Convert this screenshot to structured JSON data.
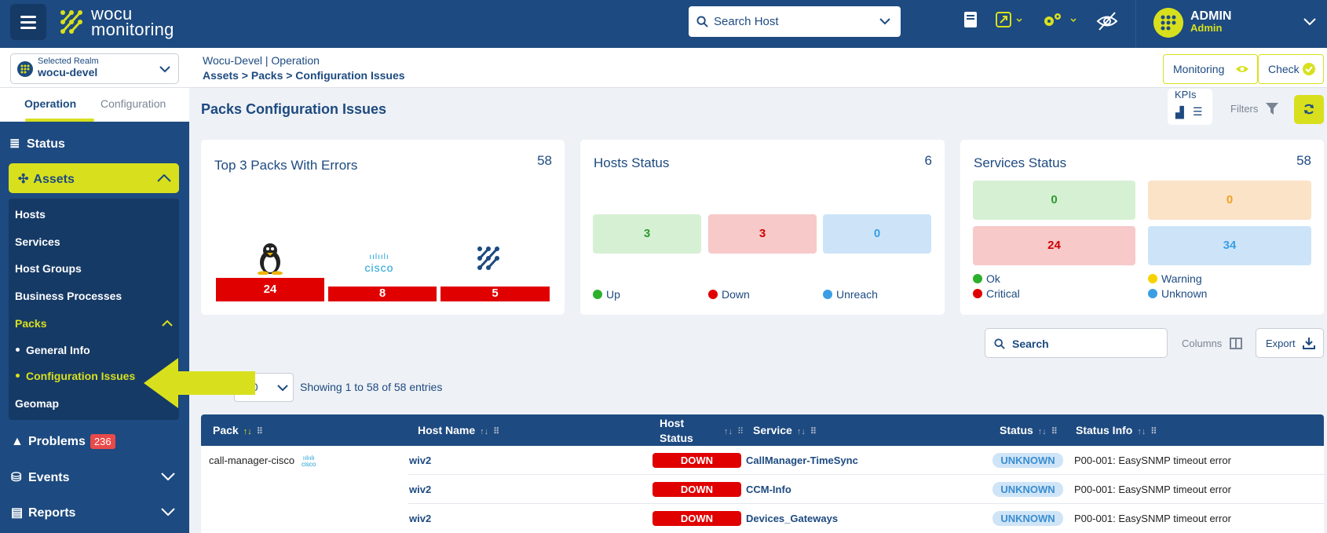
{
  "brand": {
    "line1": "wocu",
    "line2": "monitoring"
  },
  "header": {
    "search_placeholder": "Search Host",
    "user_name": "ADMIN",
    "user_role": "Admin"
  },
  "realm": {
    "label": "Selected Realm",
    "value": "wocu-devel"
  },
  "breadcrumb": {
    "line1": "Wocu-Devel | Operation",
    "line2": "Assets > Packs > Configuration Issues"
  },
  "header_buttons": {
    "monitoring": "Monitoring",
    "check": "Check"
  },
  "sidebar": {
    "tabs": [
      "Operation",
      "Configuration"
    ],
    "status": "Status",
    "assets": "Assets",
    "sub": {
      "hosts": "Hosts",
      "services": "Services",
      "host_groups": "Host Groups",
      "business": "Business Processes",
      "packs": "Packs",
      "general": "General Info",
      "config_issues": "Configuration Issues",
      "geomap": "Geomap"
    },
    "problems": "Problems",
    "problems_count": "236",
    "events": "Events",
    "reports": "Reports"
  },
  "page": {
    "title": "Packs Configuration Issues",
    "kpis": "KPIs",
    "filters": "Filters"
  },
  "cards": {
    "packs": {
      "title": "Top 3 Packs With Errors",
      "count": "58",
      "bars": [
        "24",
        "8",
        "5"
      ],
      "logo": "cisco"
    },
    "hosts": {
      "title": "Hosts Status",
      "count": "6",
      "up": "3",
      "down": "3",
      "unreach": "0",
      "legend": [
        "Up",
        "Down",
        "Unreach"
      ]
    },
    "services": {
      "title": "Services Status",
      "count": "58",
      "ok": "0",
      "warning": "0",
      "critical": "24",
      "unknown": "34",
      "legend": [
        "Ok",
        "Warning",
        "Critical",
        "Unknown"
      ]
    }
  },
  "table_controls": {
    "search": "Search",
    "columns": "Columns",
    "export": "Export",
    "length": "50",
    "showing": "Showing 1 to 58 of 58 entries"
  },
  "table": {
    "headers": [
      "Pack",
      "Host Name",
      "Host Status",
      "Service",
      "Status",
      "Status Info"
    ],
    "rows": [
      {
        "pack": "call-manager-cisco",
        "host": "wiv2",
        "host_status": "DOWN",
        "service": "CallManager-TimeSync",
        "status": "UNKNOWN",
        "info": "P00-001: EasySNMP timeout error"
      },
      {
        "pack": "",
        "host": "wiv2",
        "host_status": "DOWN",
        "service": "CCM-Info",
        "status": "UNKNOWN",
        "info": "P00-001: EasySNMP timeout error"
      },
      {
        "pack": "",
        "host": "wiv2",
        "host_status": "DOWN",
        "service": "Devices_Gateways",
        "status": "UNKNOWN",
        "info": "P00-001: EasySNMP timeout error"
      }
    ]
  },
  "colors": {
    "primary": "#1d4a80",
    "accent": "#d8e01e",
    "down": "#e00000"
  }
}
